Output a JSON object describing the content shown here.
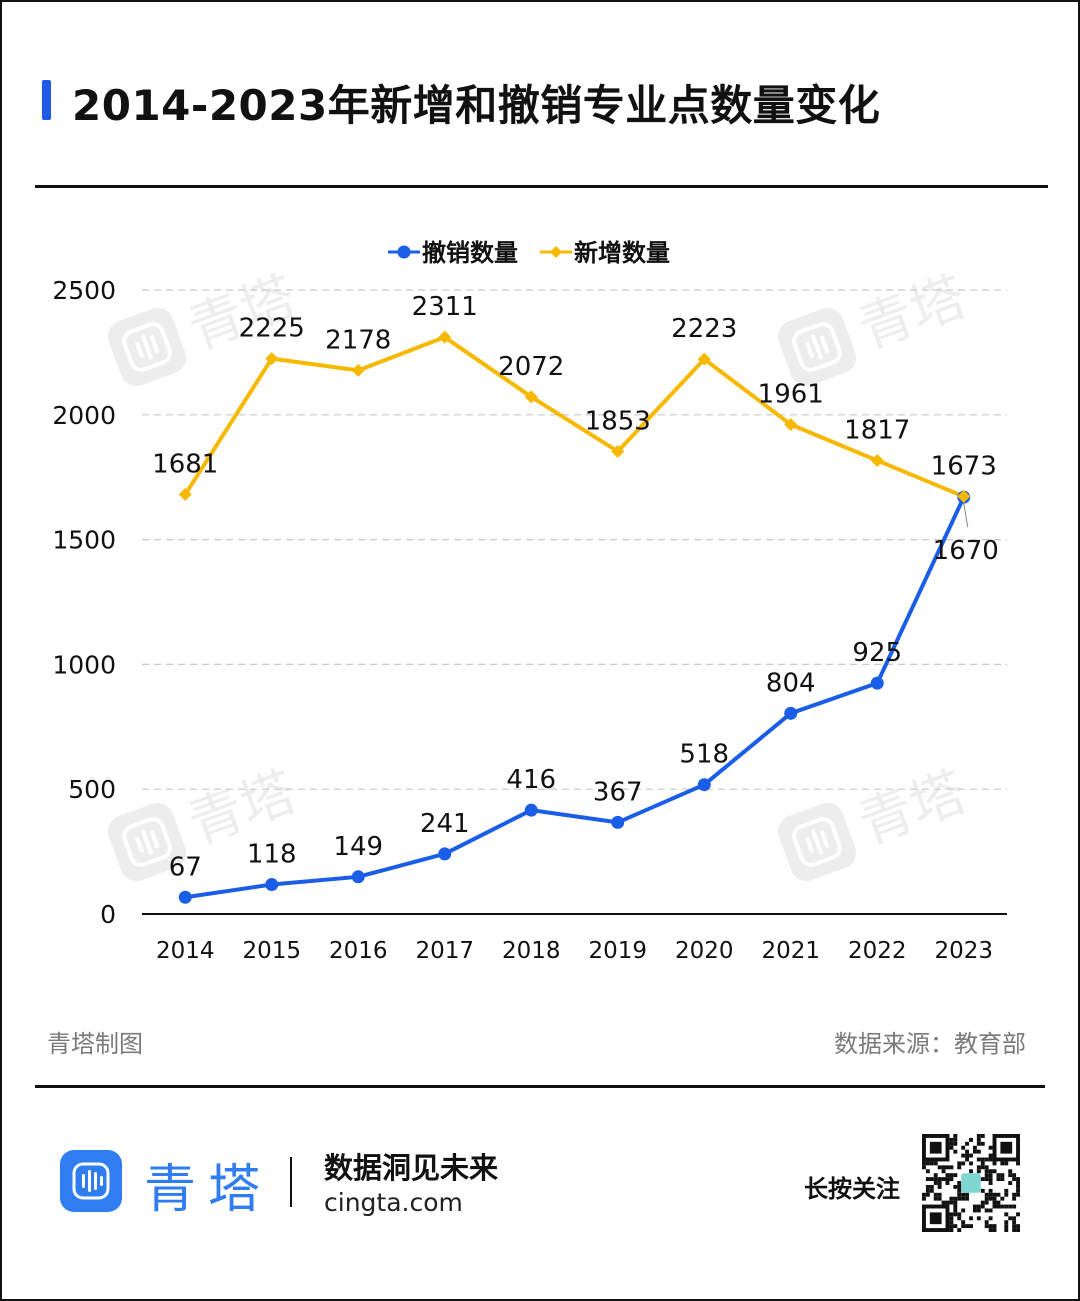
{
  "title": "2014-2023年新增和撤销专业点数量变化",
  "footer": {
    "made_by": "青塔制图",
    "source": "数据来源：教育部",
    "brand_name": "青塔",
    "slogan": "数据洞见未来",
    "url": "cingta.com",
    "follow": "长按关注"
  },
  "watermark_text": "青塔",
  "colors": {
    "accent": "#1f5be6",
    "revoked_series": "#1a5ee8",
    "added_series": "#f7b800",
    "brand": "#2f7df0"
  },
  "chart_data": {
    "type": "line",
    "title": "2014-2023年新增和撤销专业点数量变化",
    "xlabel": "",
    "ylabel": "",
    "categories": [
      "2014",
      "2015",
      "2016",
      "2017",
      "2018",
      "2019",
      "2020",
      "2021",
      "2022",
      "2023"
    ],
    "ylim": [
      0,
      2500
    ],
    "yticks": [
      0,
      500,
      1000,
      1500,
      2000,
      2500
    ],
    "grid": "horizontal dashed",
    "legend_position": "top-center",
    "series": [
      {
        "name": "撤销数量",
        "color": "#1a5ee8",
        "marker": "circle",
        "values": [
          67,
          118,
          149,
          241,
          416,
          367,
          518,
          804,
          925,
          1670
        ]
      },
      {
        "name": "新增数量",
        "color": "#f7b800",
        "marker": "diamond",
        "values": [
          1681,
          2225,
          2178,
          2311,
          2072,
          1853,
          2223,
          1961,
          1817,
          1673
        ]
      }
    ]
  }
}
